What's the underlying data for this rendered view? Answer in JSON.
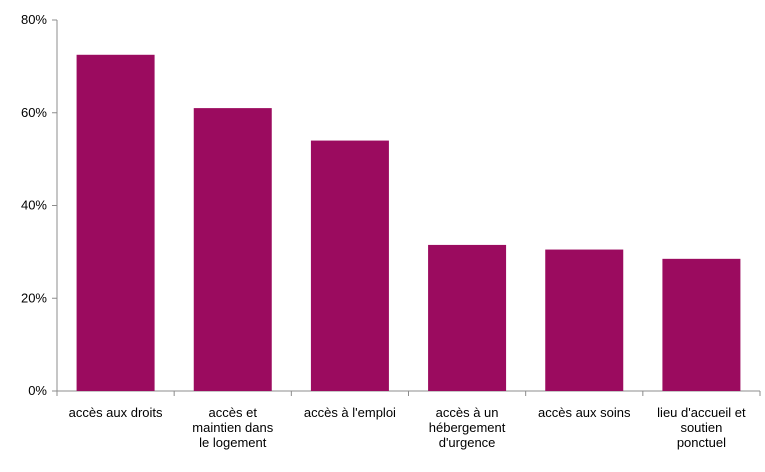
{
  "chart_data": {
    "type": "bar",
    "title": "",
    "xlabel": "",
    "ylabel": "",
    "categories": [
      [
        "accès aux droits"
      ],
      [
        "accès et",
        "maintien dans",
        "le logement"
      ],
      [
        "accès à l'emploi"
      ],
      [
        "accès à un",
        "hébergement",
        "d'urgence"
      ],
      [
        "accès aux soins"
      ],
      [
        "lieu d'accueil et",
        "soutien",
        "ponctuel"
      ]
    ],
    "values": [
      72.5,
      61,
      54,
      31.5,
      30.5,
      28.5
    ],
    "ylim": [
      0,
      80
    ],
    "yticks": [
      0,
      20,
      40,
      60,
      80
    ],
    "ytick_labels": [
      "0%",
      "20%",
      "40%",
      "60%",
      "80%"
    ],
    "bar_color": "#9b0b5f",
    "axis_color": "#8c8c8c",
    "grid": false,
    "legend": "none"
  }
}
